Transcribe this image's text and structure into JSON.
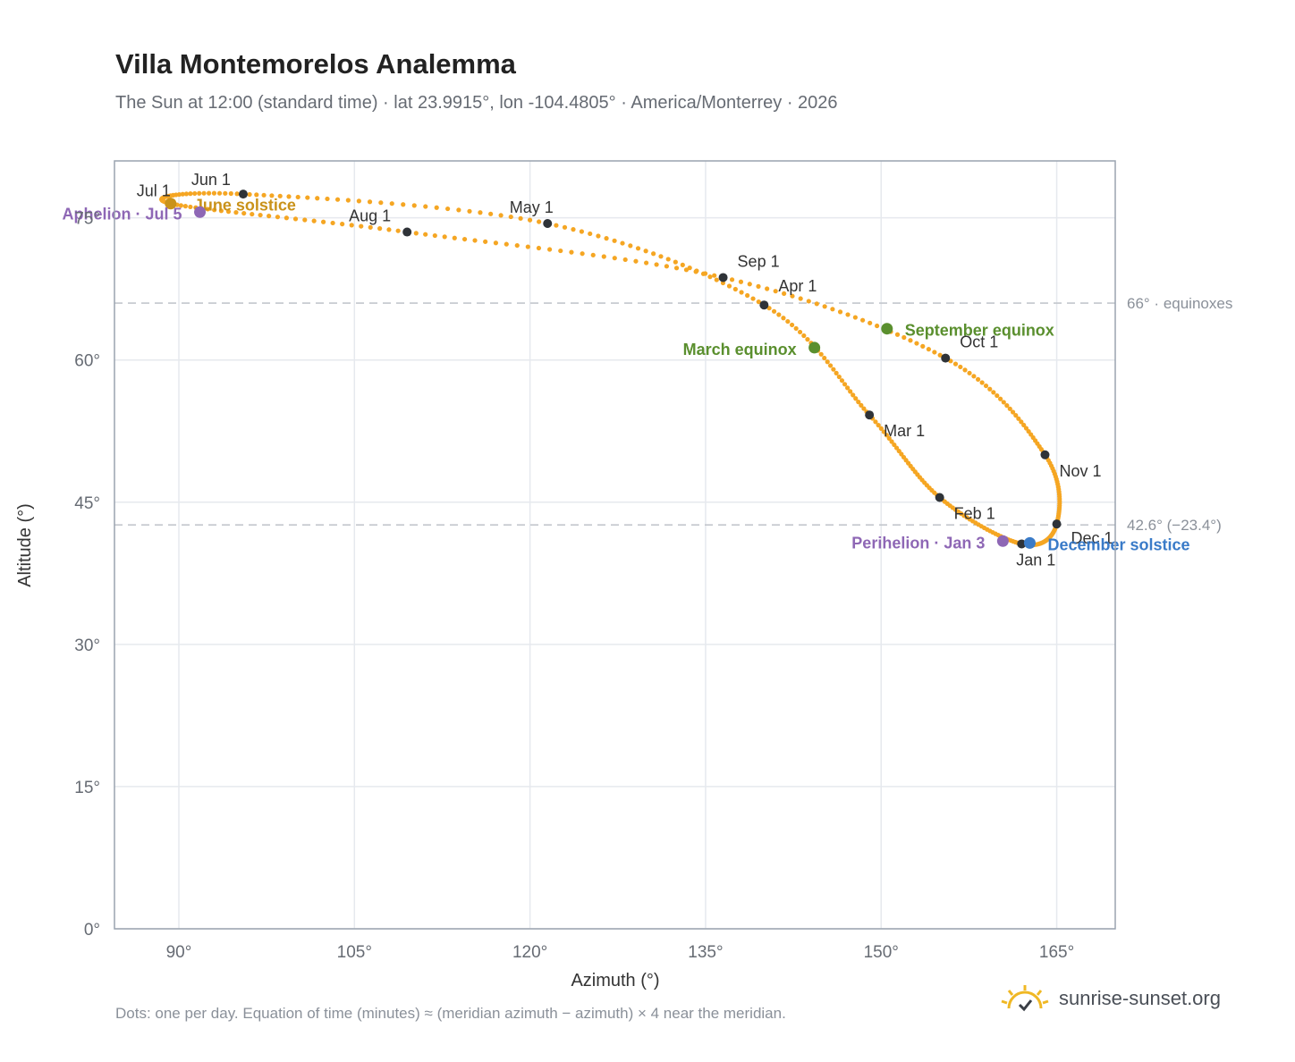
{
  "header": {
    "title": "Villa Montemorelos Analemma",
    "subtitle": "The Sun at 12:00 (standard time) · lat 23.9915°, lon -104.4805° · America/Monterrey · 2026"
  },
  "footer": {
    "note": "Dots: one per day. Equation of time (minutes) ≈ (meridian azimuth − azimuth) × 4 near the meridian.",
    "brand": "sunrise-sunset.org"
  },
  "colors": {
    "curve": "#f5a623",
    "month_dot": "#2f3338",
    "equinox": "#5a8f2e",
    "solstice_june": "#c9921a",
    "solstice_december": "#3a7bc8",
    "apsis": "#8e67b5",
    "grid": "#e6e9ee",
    "reference": "#c3c7cd",
    "frame": "#9aa3af"
  },
  "chart_data": {
    "type": "scatter",
    "xlabel": "Azimuth (°)",
    "ylabel": "Altitude (°)",
    "xlim": [
      84.5,
      170
    ],
    "ylim": [
      0,
      81
    ],
    "xticks": [
      90,
      105,
      120,
      135,
      150,
      165
    ],
    "yticks": [
      0,
      15,
      30,
      45,
      60,
      75
    ],
    "xtick_labels": [
      "90°",
      "105°",
      "120°",
      "135°",
      "150°",
      "165°"
    ],
    "ytick_labels": [
      "0°",
      "15°",
      "30°",
      "45°",
      "60°",
      "75°"
    ],
    "grid": true,
    "reference_lines": [
      {
        "y": 66.0,
        "label": "66° · equinoxes"
      },
      {
        "y": 42.6,
        "label": "42.6° (−23.4°)"
      }
    ],
    "month_markers": [
      {
        "label": "Jan 1",
        "az": 162.0,
        "alt": 40.6
      },
      {
        "label": "Feb 1",
        "az": 155.0,
        "alt": 45.5
      },
      {
        "label": "Mar 1",
        "az": 149.0,
        "alt": 54.2
      },
      {
        "label": "Apr 1",
        "az": 140.0,
        "alt": 65.8
      },
      {
        "label": "May 1",
        "az": 121.5,
        "alt": 74.4
      },
      {
        "label": "Jun 1",
        "az": 95.5,
        "alt": 77.5
      },
      {
        "label": "Jul 1",
        "az": 89.3,
        "alt": 76.5
      },
      {
        "label": "Aug 1",
        "az": 109.5,
        "alt": 73.5
      },
      {
        "label": "Sep 1",
        "az": 136.5,
        "alt": 68.7
      },
      {
        "label": "Oct 1",
        "az": 155.5,
        "alt": 60.2
      },
      {
        "label": "Nov 1",
        "az": 164.0,
        "alt": 50.0
      },
      {
        "label": "Dec 1",
        "az": 165.0,
        "alt": 42.7
      }
    ],
    "events": [
      {
        "label": "March equinox",
        "az": 144.3,
        "alt": 61.3,
        "kind": "equinox"
      },
      {
        "label": "September equinox",
        "az": 150.5,
        "alt": 63.3,
        "kind": "equinox"
      },
      {
        "label": "June solstice",
        "az": 89.3,
        "alt": 76.5,
        "kind": "solstice_june"
      },
      {
        "label": "December solstice",
        "az": 162.7,
        "alt": 40.7,
        "kind": "solstice_december"
      },
      {
        "label": "Aphelion · Jul 5",
        "az": 91.8,
        "alt": 75.6,
        "kind": "apsis"
      },
      {
        "label": "Perihelion · Jan 3",
        "az": 160.4,
        "alt": 40.9,
        "kind": "apsis"
      }
    ]
  }
}
